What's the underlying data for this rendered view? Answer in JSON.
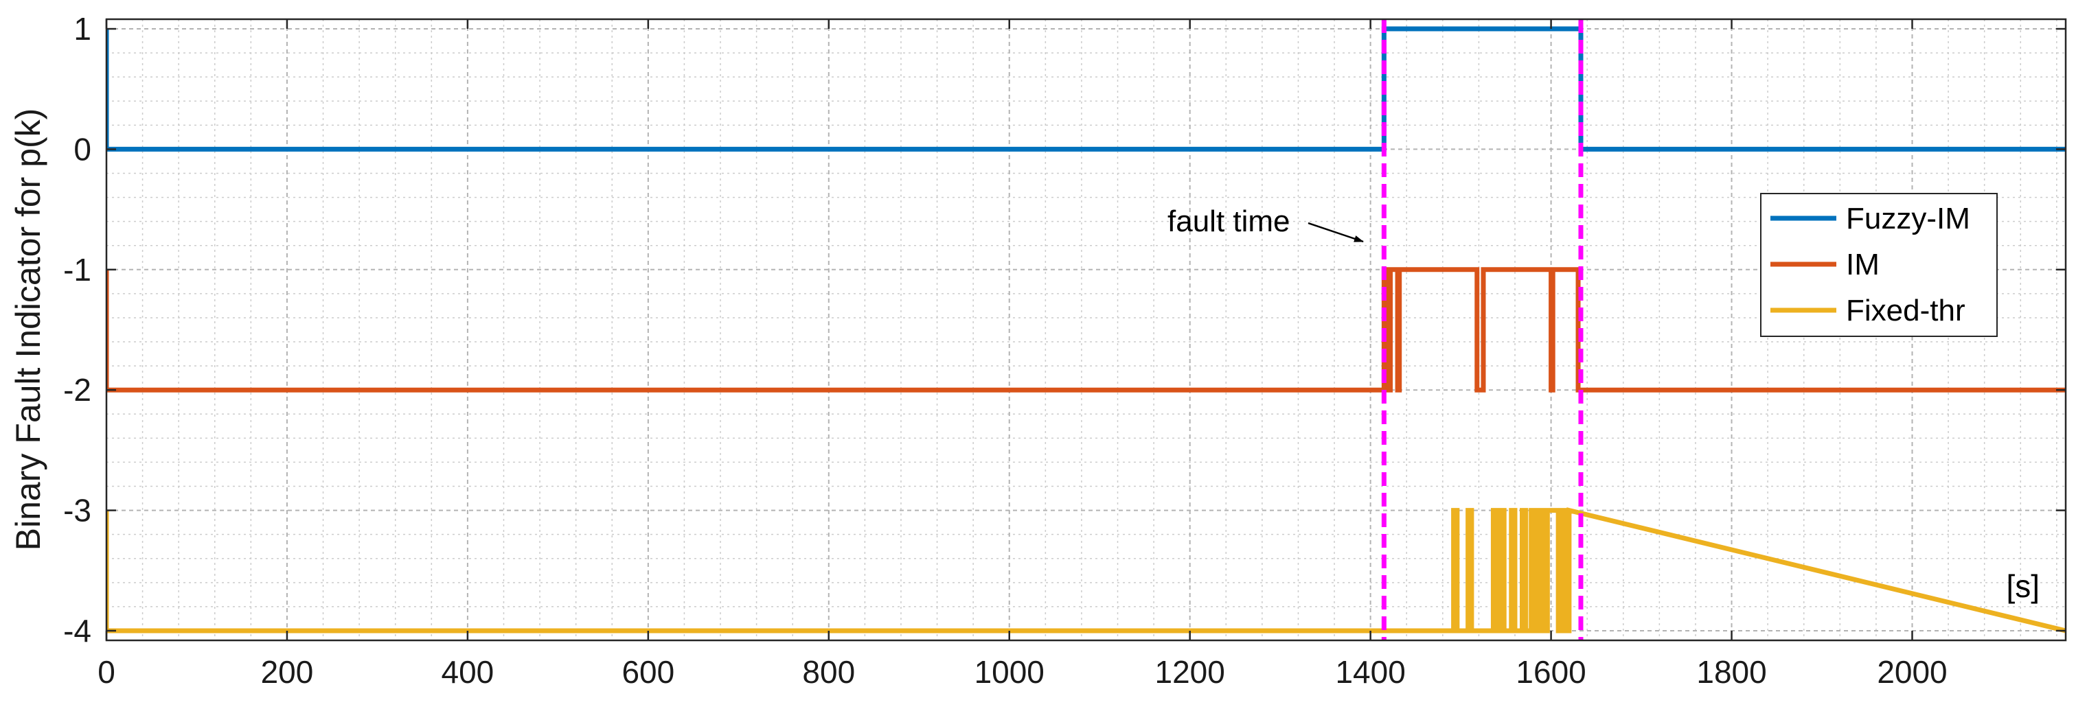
{
  "chart_data": {
    "type": "line",
    "title": "",
    "xlabel": "",
    "ylabel": "Binary Fault Indicator for  p(k)",
    "x_unit_label": "[s]",
    "xlim": [
      0,
      2170
    ],
    "ylim": [
      -4.08,
      1.08
    ],
    "xticks": [
      0,
      200,
      400,
      600,
      800,
      1000,
      1200,
      1400,
      1600,
      1800,
      2000
    ],
    "xtick_labels": [
      "0",
      "200",
      "400",
      "600",
      "800",
      "1000",
      "1200",
      "1400",
      "1600",
      "1800",
      "2000"
    ],
    "yticks": [
      1,
      0,
      -1,
      -2,
      -3,
      -4
    ],
    "ytick_labels": [
      "1",
      "0",
      "-1",
      "-2",
      "-3",
      "-4"
    ],
    "grid": true,
    "minor_grid": true,
    "legend_position": "right",
    "series": [
      {
        "name": "Fuzzy-IM",
        "color": "#0072BD",
        "x": [
          0,
          0,
          0,
          1415,
          1415,
          1633,
          1633,
          2170
        ],
        "y": [
          0,
          1,
          0,
          0,
          1,
          1,
          0,
          0
        ]
      },
      {
        "name": "IM",
        "color": "#D95319",
        "x": [
          0,
          0,
          0,
          1415,
          1415,
          1420,
          1420,
          1422,
          1422,
          1430,
          1430,
          1432,
          1432,
          1518,
          1518,
          1525,
          1525,
          1600,
          1600,
          1602,
          1602,
          1630,
          1630,
          1633,
          1633,
          2170
        ],
        "y": [
          -2,
          -1,
          -2,
          -2,
          -1,
          -1,
          -2,
          -2,
          -1,
          -1,
          -2,
          -2,
          -1,
          -1,
          -2,
          -2,
          -1,
          -1,
          -2,
          -2,
          -1,
          -1,
          -2,
          -2,
          -2,
          -2
        ]
      },
      {
        "name": "Fixed-thr",
        "color": "#EDB120",
        "x": [
          0,
          0,
          0,
          1492,
          1492,
          1496,
          1496,
          1508,
          1508,
          1512,
          1512,
          1536,
          1536,
          1540,
          1540,
          1545,
          1545,
          1548,
          1548,
          1556,
          1556,
          1560,
          1560,
          1568,
          1568,
          1572,
          1572,
          1578,
          1578,
          1583,
          1583,
          1588,
          1588,
          1592,
          1592,
          1596,
          1596,
          1608,
          1608,
          1612,
          1612,
          1616,
          1616,
          1620,
          1620,
          2170
        ],
        "y": [
          -4,
          -3,
          -4,
          -4,
          -3,
          -3,
          -4,
          -4,
          -3,
          -3,
          -4,
          -4,
          -3,
          -3,
          -4,
          -4,
          -3,
          -3,
          -4,
          -4,
          -3,
          -3,
          -4,
          -4,
          -3,
          -3,
          -4,
          -4,
          -3,
          -3,
          -4,
          -4,
          -3,
          -3,
          -4,
          -4,
          -3,
          -3,
          -4,
          -4,
          -3,
          -3,
          -4,
          -4,
          -3,
          -4
        ]
      }
    ],
    "fault_lines": {
      "color": "#FF00FF",
      "x": [
        1415,
        1633
      ]
    },
    "annotations": [
      {
        "text": "fault time",
        "arrow_target": [
          1415,
          -0.72
        ]
      }
    ]
  }
}
